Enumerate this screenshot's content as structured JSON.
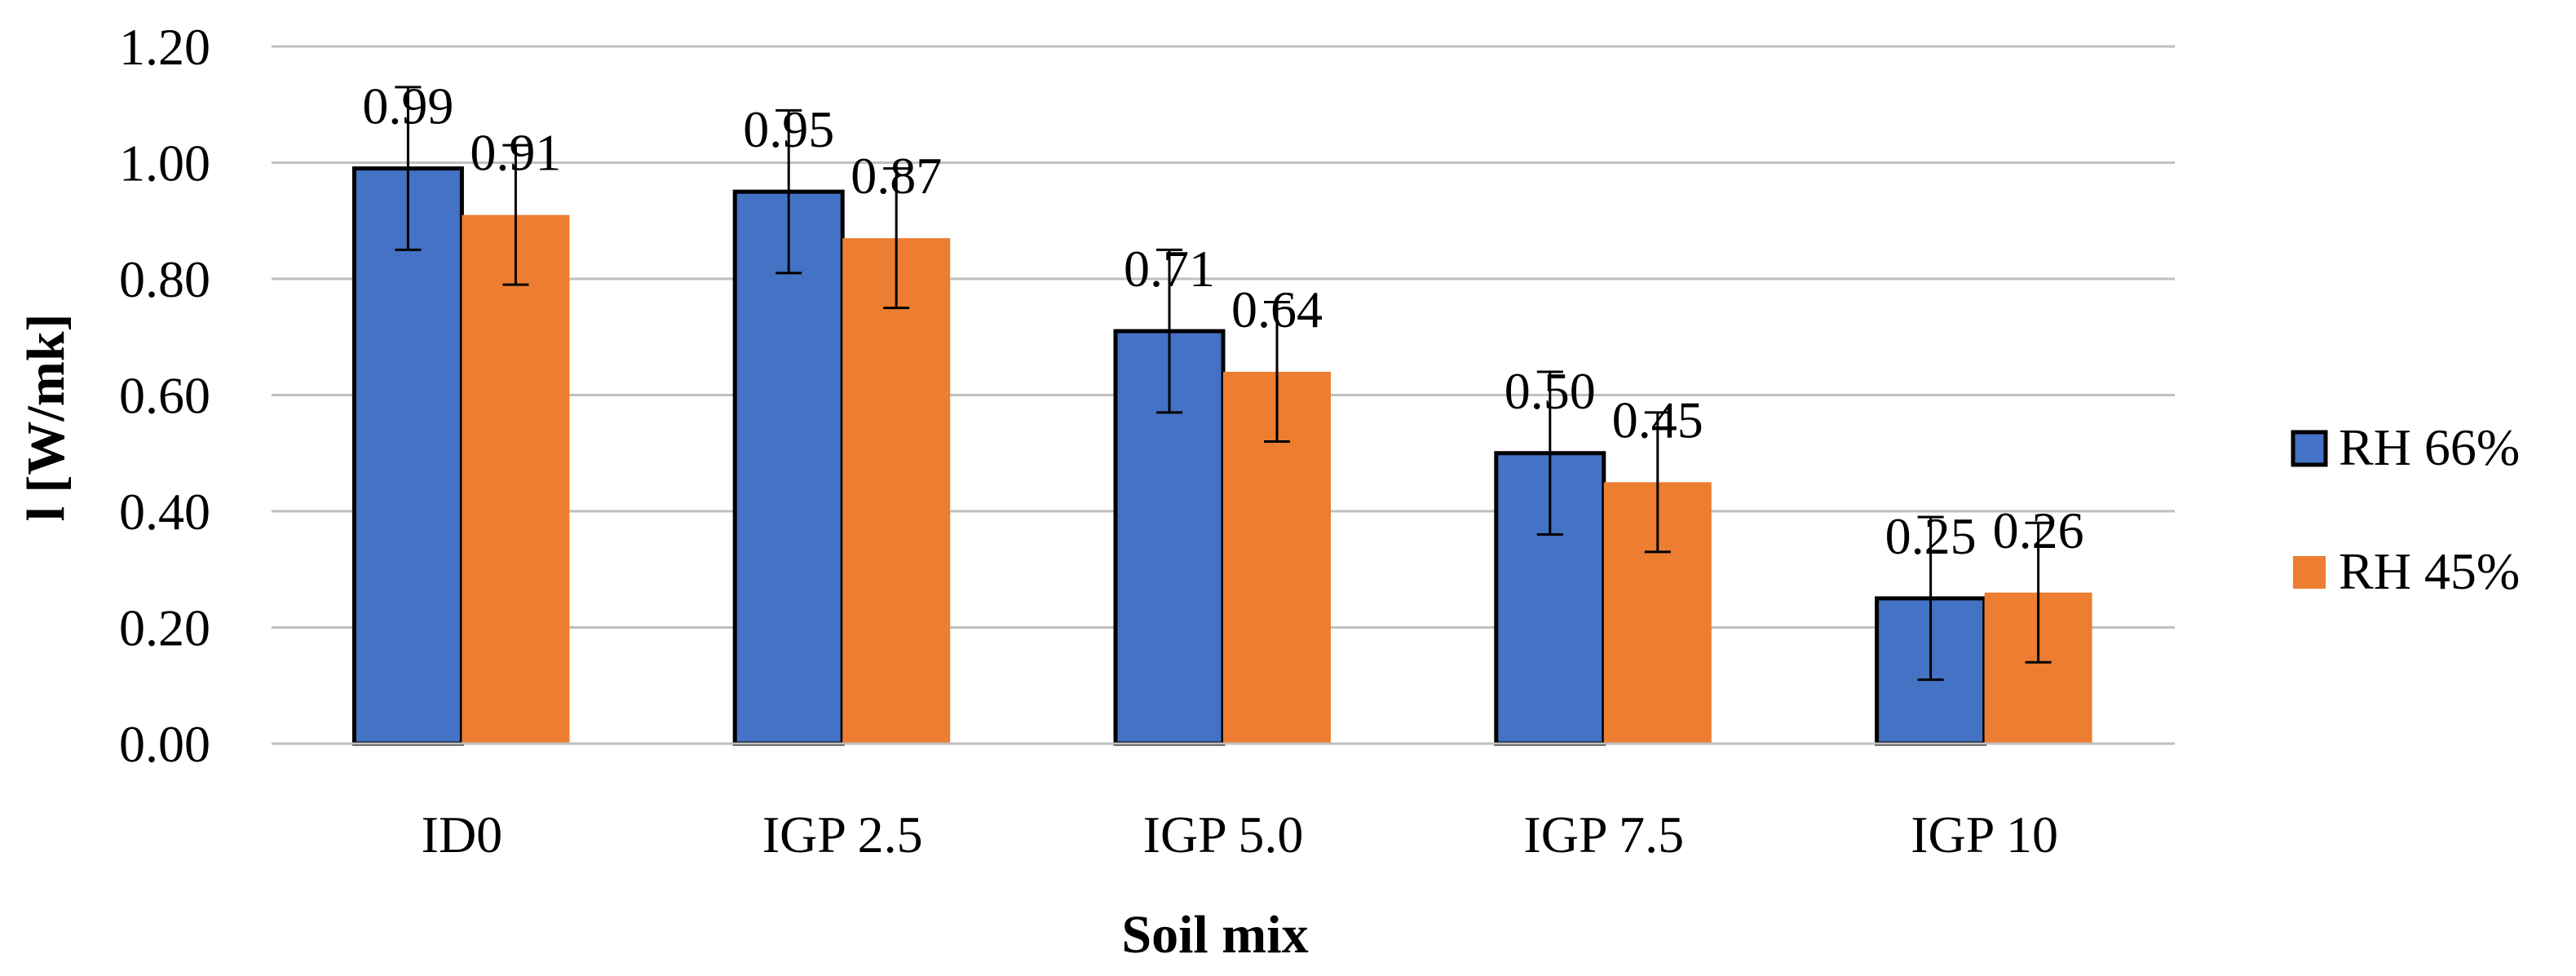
{
  "chart_data": {
    "type": "bar",
    "title": "",
    "xlabel": "Soil mix",
    "ylabel": "l [W/mk]",
    "ylim": [
      0,
      1.2
    ],
    "ytick_step": 0.2,
    "yticks": [
      "0.00",
      "0.20",
      "0.40",
      "0.60",
      "0.80",
      "1.00",
      "1.20"
    ],
    "categories": [
      "ID0",
      "IGP 2.5",
      "IGP 5.0",
      "IGP 7.5",
      "IGP 10"
    ],
    "series": [
      {
        "name": "RH 66%",
        "color": "#4472C4",
        "values": [
          0.99,
          0.95,
          0.71,
          0.5,
          0.25
        ],
        "labels": [
          "0.99",
          "0.95",
          "0.71",
          "0.50",
          "0.25"
        ],
        "errors": [
          0.14,
          0.14,
          0.14,
          0.14,
          0.14
        ]
      },
      {
        "name": "RH 45%",
        "color": "#ED7D31",
        "values": [
          0.91,
          0.87,
          0.64,
          0.45,
          0.26
        ],
        "labels": [
          "0.91",
          "0.87",
          "0.64",
          "0.45",
          "0.26"
        ],
        "errors": [
          0.12,
          0.12,
          0.12,
          0.12,
          0.12
        ]
      }
    ],
    "grid": true,
    "legend_position": "right"
  }
}
